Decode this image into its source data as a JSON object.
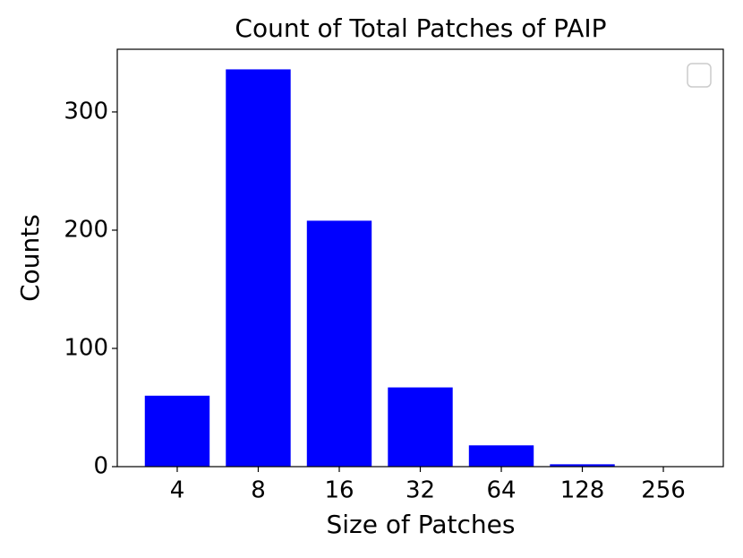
{
  "chart_data": {
    "type": "bar",
    "title": "Count of Total Patches of PAIP",
    "x_label": "Size of Patches",
    "y_label": "Counts",
    "categories": [
      "4",
      "8",
      "16",
      "32",
      "64",
      "128",
      "256"
    ],
    "values": [
      60,
      336,
      208,
      67,
      18,
      2,
      0
    ],
    "color": "#0000ff",
    "ylim": [
      0,
      353
    ],
    "yticks": [
      0,
      100,
      200,
      300
    ],
    "grid": false
  }
}
